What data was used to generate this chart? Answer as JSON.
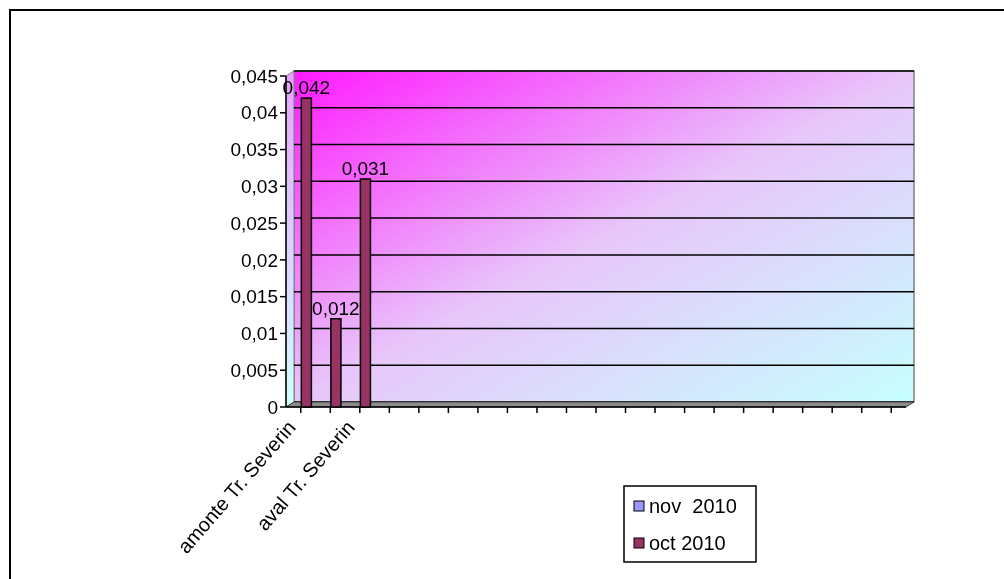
{
  "chart_data": {
    "type": "bar",
    "categories": [
      "amonte Tr. Severin",
      null,
      "aval Tr. Severin",
      null,
      null,
      null,
      null,
      null,
      null,
      null,
      null,
      null,
      null,
      null,
      null,
      null,
      null,
      null,
      null,
      null,
      null
    ],
    "series": [
      {
        "name": "nov  2010",
        "color": "#9999ff",
        "values": [
          null,
          null,
          null,
          null,
          null,
          null,
          null,
          null,
          null,
          null,
          null,
          null,
          null,
          null,
          null,
          null,
          null,
          null,
          null,
          null,
          null
        ]
      },
      {
        "name": "oct 2010",
        "color": "#993366",
        "values": [
          0.042,
          0.012,
          0.031,
          null,
          null,
          null,
          null,
          null,
          null,
          null,
          null,
          null,
          null,
          null,
          null,
          null,
          null,
          null,
          null,
          null,
          null
        ],
        "value_labels": [
          "0,042",
          "0,012",
          "0,031",
          null,
          null,
          null,
          null,
          null,
          null,
          null,
          null,
          null,
          null,
          null,
          null,
          null,
          null,
          null,
          null,
          null,
          null
        ]
      }
    ],
    "ylim": [
      0,
      0.045
    ],
    "yticks": [
      0,
      {
        "value": 0.005,
        "label": "0,005"
      },
      {
        "value": 0.01,
        "label": "0,01"
      },
      {
        "value": 0.015,
        "label": "0,015"
      },
      {
        "value": 0.02,
        "label": "0,02"
      },
      {
        "value": 0.025,
        "label": "0,025"
      },
      {
        "value": 0.03,
        "label": "0,03"
      },
      {
        "value": 0.035,
        "label": "0,035"
      },
      {
        "value": 0.04,
        "label": "0,04"
      },
      {
        "value": 0.045,
        "label": "0,045"
      }
    ],
    "grid": "y",
    "legend": "bottom"
  }
}
